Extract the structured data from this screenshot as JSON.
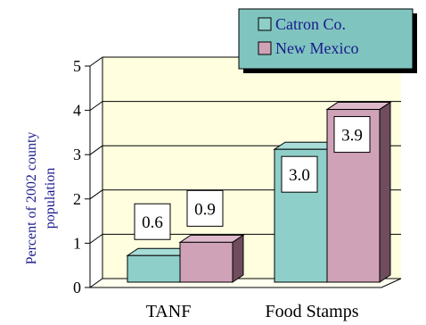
{
  "chart_data": {
    "type": "bar",
    "title": "",
    "ylabel_lines": [
      "Percent of 2002 county",
      "population"
    ],
    "xlabel": "",
    "categories": [
      "TANF",
      "Food Stamps"
    ],
    "ylim": [
      0,
      5
    ],
    "yticks": [
      0,
      1,
      2,
      3,
      4,
      5
    ],
    "grid": true,
    "legend_position": "top-right",
    "series": [
      {
        "name": "Catron Co.",
        "values": [
          0.6,
          3.0
        ],
        "labels": [
          "0.6",
          "3.0"
        ],
        "color": "#8fcfc9"
      },
      {
        "name": "New Mexico",
        "values": [
          0.9,
          3.9
        ],
        "labels": [
          "0.9",
          "3.9"
        ],
        "color": "#cfa2b8"
      }
    ],
    "colors": {
      "plot_back": "#ffffe0",
      "plot_floor": "#fffff0",
      "axis_text": "#000000",
      "ylabel_text": "#1a1a8c",
      "legend_bg": "#7fc4bf"
    }
  }
}
